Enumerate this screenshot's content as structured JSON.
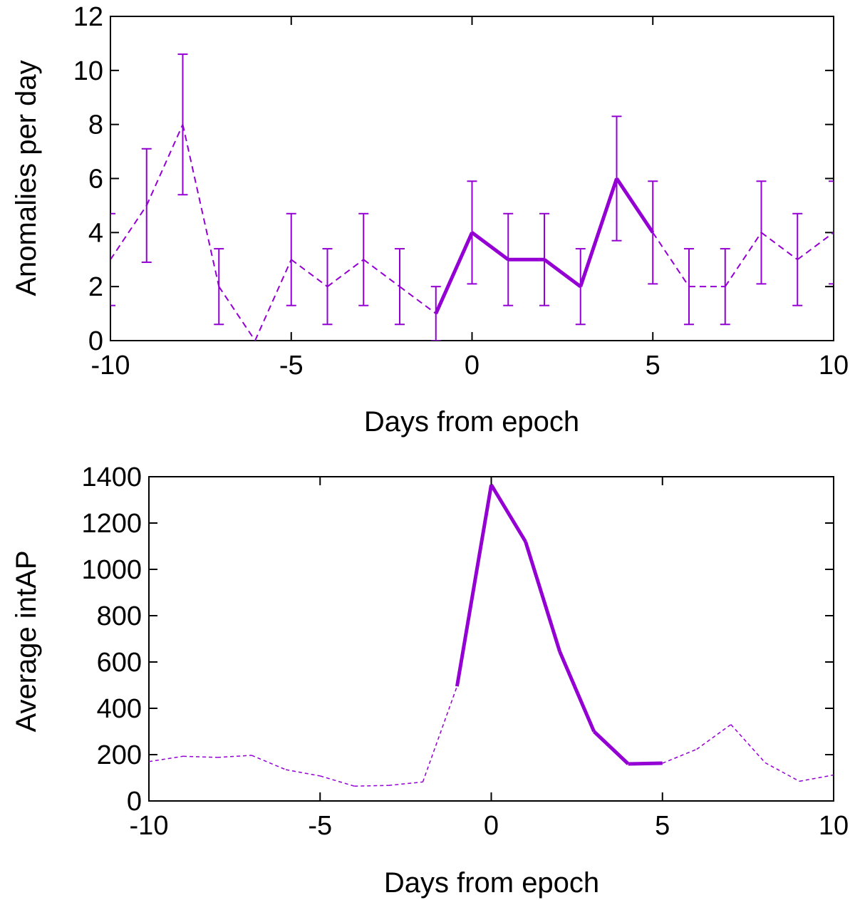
{
  "colors": {
    "series": "#9400D3",
    "axis": "#000000",
    "background": "#ffffff"
  },
  "chart_data": [
    {
      "type": "line",
      "panel": "top",
      "title": "",
      "xlabel": "Days from epoch",
      "ylabel": "Anomalies per day",
      "xlim": [
        -10,
        10
      ],
      "ylim": [
        0,
        12
      ],
      "xticks": [
        -10,
        -5,
        0,
        5,
        10
      ],
      "xtick_labels": [
        "-10",
        "-5",
        "0",
        "5",
        "10"
      ],
      "yticks": [
        0,
        2,
        4,
        6,
        8,
        10,
        12
      ],
      "ytick_labels": [
        "0",
        "2",
        "4",
        "6",
        "8",
        "10",
        "12"
      ],
      "grid": false,
      "x": [
        -10,
        -9,
        -8,
        -7,
        -6,
        -5,
        -4,
        -3,
        -2,
        -1,
        0,
        1,
        2,
        3,
        4,
        5,
        6,
        7,
        8,
        9,
        10
      ],
      "values": [
        3,
        5,
        8,
        2,
        0,
        3,
        2,
        3,
        2,
        1,
        4,
        3,
        3,
        2,
        6,
        4,
        2,
        2,
        4,
        3,
        4
      ],
      "error_low": [
        1.3,
        2.9,
        5.4,
        0.6,
        0,
        1.3,
        0.6,
        1.3,
        0.6,
        0,
        2.1,
        1.3,
        1.3,
        0.6,
        3.7,
        2.1,
        0.6,
        0.6,
        2.1,
        1.3,
        2.1
      ],
      "error_high": [
        4.7,
        7.1,
        10.6,
        3.4,
        0,
        4.7,
        3.4,
        4.7,
        3.4,
        2,
        5.9,
        4.7,
        4.7,
        3.4,
        8.3,
        5.9,
        3.4,
        3.4,
        5.9,
        4.7,
        5.9
      ],
      "highlight_range": [
        -1,
        5
      ]
    },
    {
      "type": "line",
      "panel": "bottom",
      "title": "",
      "xlabel": "Days from epoch",
      "ylabel": "Average intAP",
      "xlim": [
        -10,
        10
      ],
      "ylim": [
        0,
        1400
      ],
      "xticks": [
        -10,
        -5,
        0,
        5,
        10
      ],
      "xtick_labels": [
        "-10",
        "-5",
        "0",
        "5",
        "10"
      ],
      "yticks": [
        0,
        200,
        400,
        600,
        800,
        1000,
        1200,
        1400
      ],
      "ytick_labels": [
        "0",
        "200",
        "400",
        "600",
        "800",
        "1000",
        "1200",
        "1400"
      ],
      "grid": false,
      "x": [
        -10,
        -9,
        -8,
        -7,
        -6,
        -5,
        -4,
        -3,
        -2,
        -1,
        0,
        1,
        2,
        3,
        4,
        5,
        6,
        7,
        8,
        9,
        10
      ],
      "values": [
        170,
        193,
        188,
        197,
        135,
        108,
        64,
        67,
        82,
        495,
        1365,
        1120,
        645,
        300,
        160,
        163,
        223,
        330,
        165,
        85,
        112
      ],
      "highlight_range": [
        -1,
        5
      ]
    }
  ]
}
